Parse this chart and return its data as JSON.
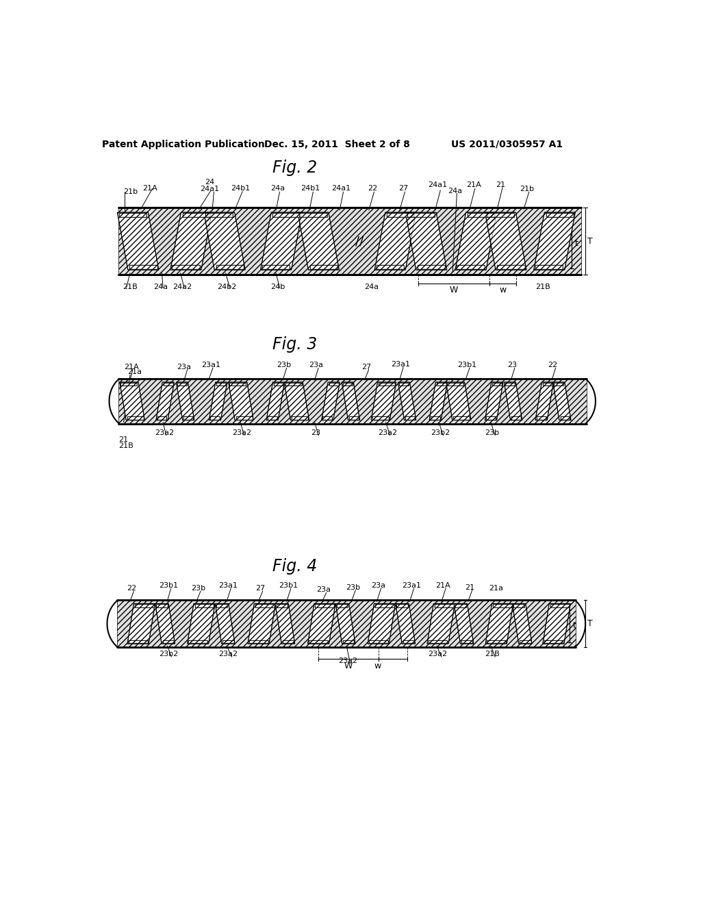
{
  "background_color": "#ffffff",
  "header_left": "Patent Application Publication",
  "header_mid": "Dec. 15, 2011  Sheet 2 of 8",
  "header_right": "US 2011/0305957 A1",
  "fig2_title": "Fig. 2",
  "fig3_title": "Fig. 3",
  "fig4_title": "Fig. 4",
  "line_color": "#000000"
}
